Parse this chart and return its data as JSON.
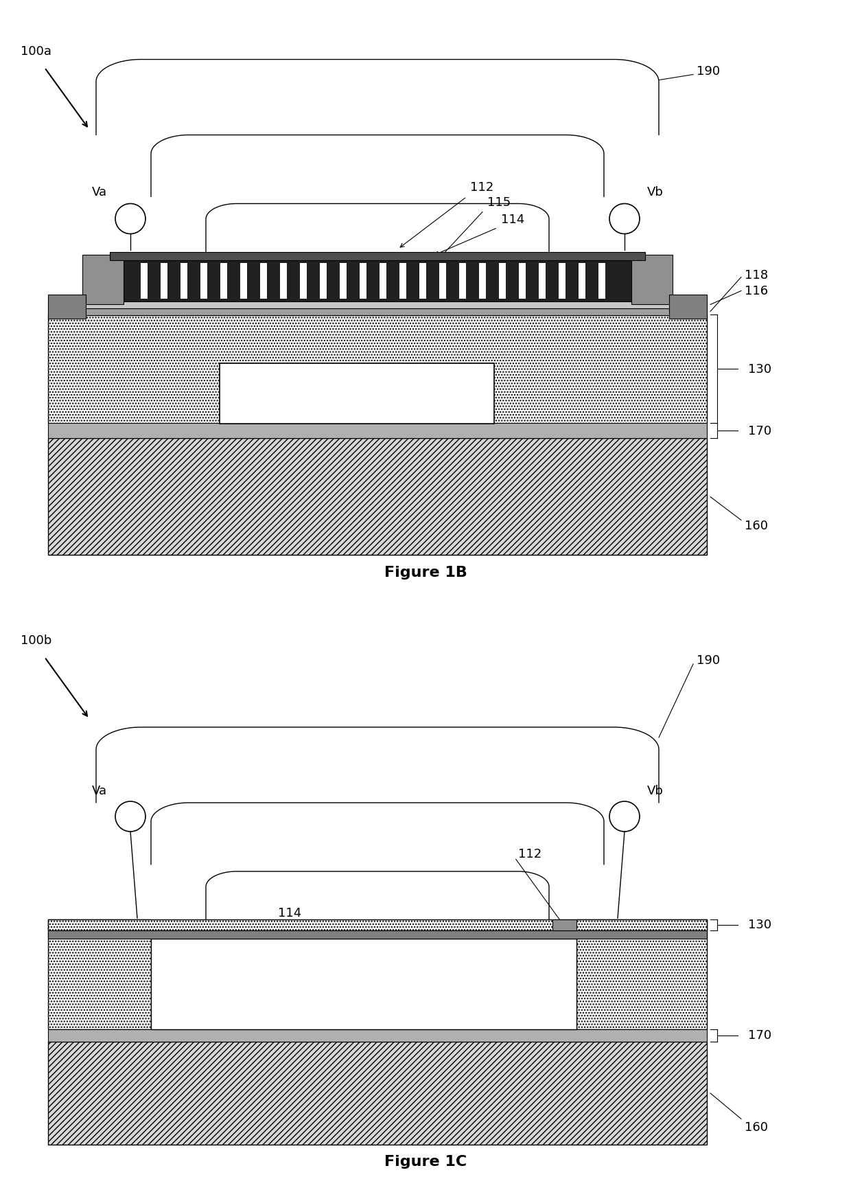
{
  "fig_width": 12.4,
  "fig_height": 17.17,
  "bg_color": "#ffffff",
  "label_fontsize": 13,
  "title_fontsize": 16,
  "fig1b": {
    "label": "100a",
    "figure_title": "Figure 1B"
  },
  "fig1c": {
    "label": "100b",
    "figure_title": "Figure 1C"
  }
}
